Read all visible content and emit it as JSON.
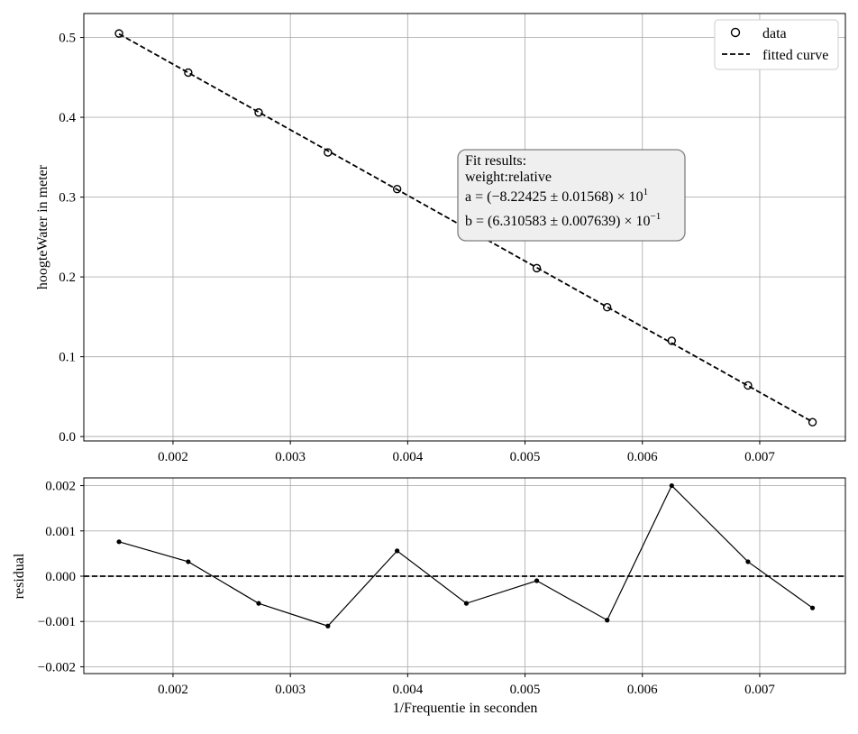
{
  "chart_data": [
    {
      "id": "fit",
      "type": "scatter",
      "title": "",
      "xlabel": "",
      "ylabel": "hoogteWater in meter",
      "xlim": [
        0.00124,
        0.00773
      ],
      "ylim": [
        -0.0055,
        0.53
      ],
      "x_ticks": [
        0.002,
        0.003,
        0.004,
        0.005,
        0.006,
        0.007
      ],
      "x_tick_labels": [
        "0.002",
        "0.003",
        "0.004",
        "0.005",
        "0.006",
        "0.007"
      ],
      "y_ticks": [
        0.0,
        0.1,
        0.2,
        0.3,
        0.4,
        0.5
      ],
      "y_tick_labels": [
        "0.0",
        "0.1",
        "0.2",
        "0.3",
        "0.4",
        "0.5"
      ],
      "grid": true,
      "series": [
        {
          "name": "data",
          "style": "open-circle",
          "x": [
            0.00154,
            0.00213,
            0.00273,
            0.00332,
            0.00391,
            0.0045,
            0.0051,
            0.0057,
            0.00625,
            0.0069,
            0.00745
          ],
          "y": [
            0.505,
            0.456,
            0.406,
            0.356,
            0.31,
            0.26,
            0.211,
            0.162,
            0.12,
            0.064,
            0.018
          ]
        },
        {
          "name": "fitted curve",
          "style": "dashed-line",
          "x": [
            0.00154,
            0.00745
          ],
          "y": [
            0.5044,
            0.0184
          ]
        }
      ],
      "legend": {
        "position": "top-right",
        "entries": [
          "data",
          "fitted curve"
        ]
      },
      "annotation": {
        "title": "Fit results:",
        "weight": "weight:relative",
        "a_line": "a = (−8.22425 ± 0.01568) × 10",
        "a_exp": "1",
        "b_line": "b = (6.310583 ± 0.007639) × 10",
        "b_exp": "−1"
      }
    },
    {
      "id": "residual",
      "type": "line",
      "title": "",
      "xlabel": "1/Frequentie in seconden",
      "ylabel": "residual",
      "xlim": [
        0.00124,
        0.00773
      ],
      "ylim": [
        -0.00215,
        0.00217
      ],
      "x_ticks": [
        0.002,
        0.003,
        0.004,
        0.005,
        0.006,
        0.007
      ],
      "x_tick_labels": [
        "0.002",
        "0.003",
        "0.004",
        "0.005",
        "0.006",
        "0.007"
      ],
      "y_ticks": [
        0.002,
        0.001,
        0.0,
        -0.001,
        -0.002
      ],
      "y_tick_labels": [
        "0.002",
        "0.001",
        "0.000",
        "−0.001",
        "−0.002"
      ],
      "grid": true,
      "zero_line": "dashed",
      "series": [
        {
          "name": "residual",
          "x": [
            0.00154,
            0.00213,
            0.00273,
            0.00332,
            0.00391,
            0.0045,
            0.0051,
            0.0057,
            0.00625,
            0.0069,
            0.00745
          ],
          "y": [
            0.00076,
            0.00032,
            -0.0006,
            -0.0011,
            0.00056,
            -0.0006,
            -0.0001,
            -0.00097,
            0.002,
            0.00032,
            -0.0007
          ]
        }
      ]
    }
  ]
}
